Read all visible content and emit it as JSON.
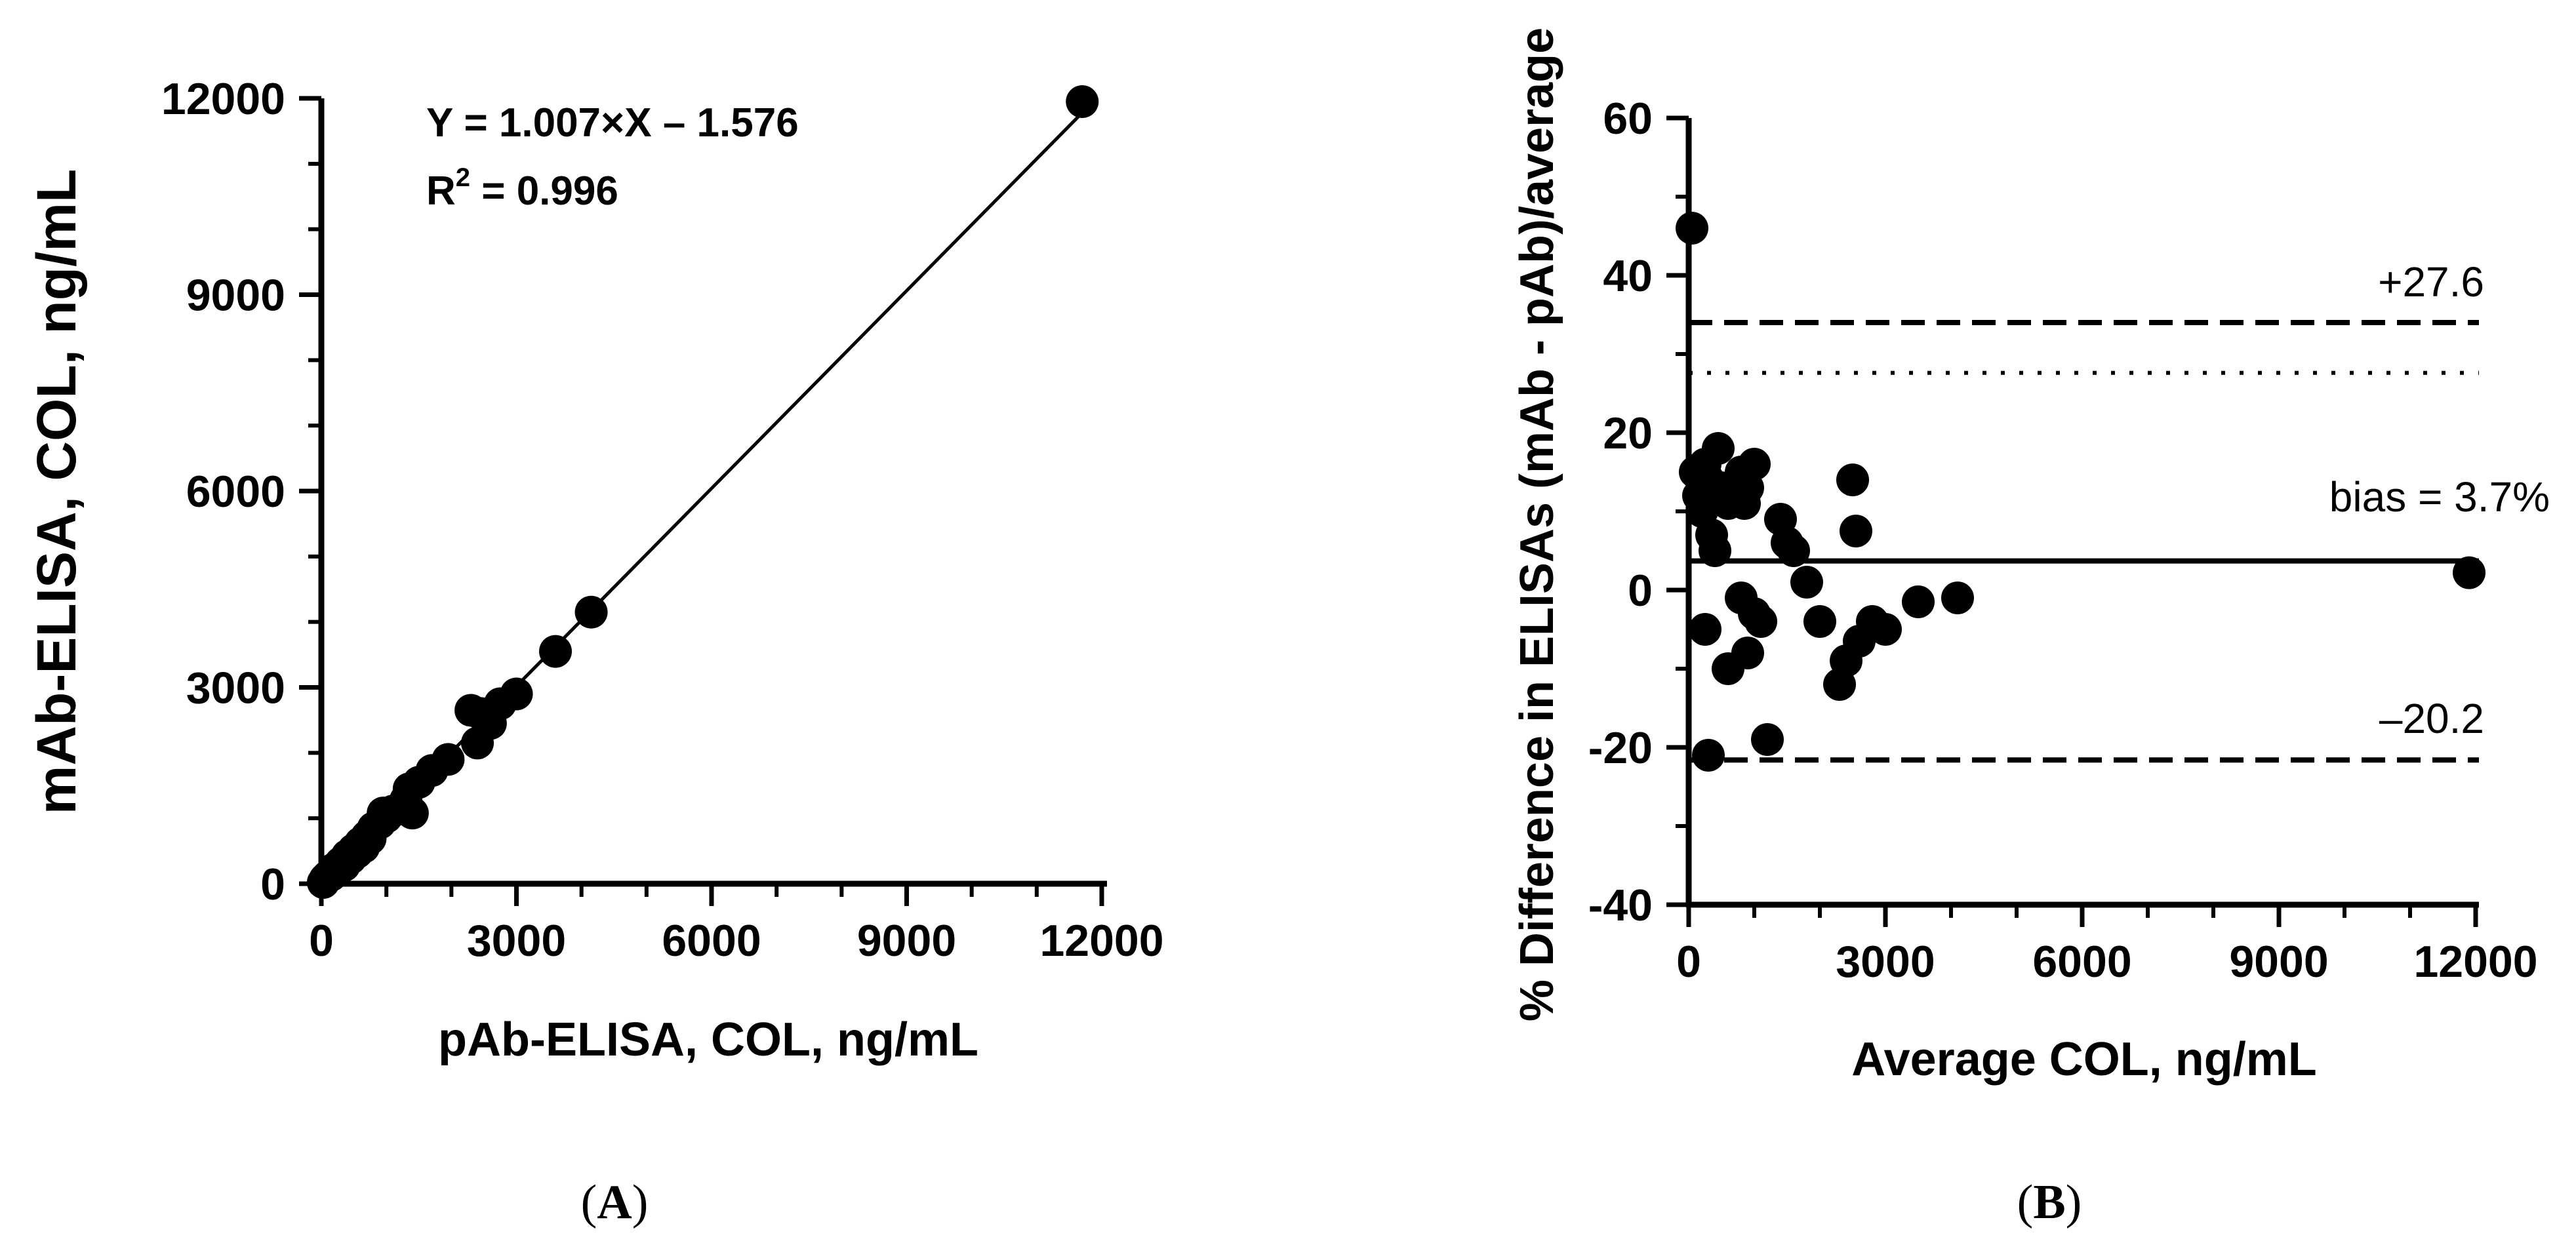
{
  "chart_data": [
    {
      "panel": "A",
      "panel_label_open": "(",
      "panel_label_letter": "A",
      "panel_label_close": ")",
      "type": "scatter",
      "xlabel": "pAb-ELISA, COL, ng/mL",
      "ylabel": "mAb-ELISA, COL, ng/mL",
      "xlim": [
        0,
        12000
      ],
      "ylim": [
        0,
        12000
      ],
      "xticks": [
        "0",
        "3000",
        "6000",
        "9000",
        "12000"
      ],
      "yticks": [
        "0",
        "3000",
        "6000",
        "9000",
        "12000"
      ],
      "annotation_equation": "Y = 1.007×X – 1.576",
      "annotation_r2_prefix": "R",
      "annotation_r2_sup": "2",
      "annotation_r2_value": " = 0.996",
      "regression": {
        "slope": 1.007,
        "intercept": -1.576,
        "x_range": [
          0,
          11700
        ]
      },
      "points": [
        [
          30,
          20
        ],
        [
          60,
          70
        ],
        [
          100,
          110
        ],
        [
          150,
          130
        ],
        [
          200,
          230
        ],
        [
          250,
          200
        ],
        [
          300,
          320
        ],
        [
          350,
          280
        ],
        [
          400,
          430
        ],
        [
          450,
          390
        ],
        [
          500,
          520
        ],
        [
          550,
          480
        ],
        [
          600,
          620
        ],
        [
          650,
          560
        ],
        [
          700,
          720
        ],
        [
          750,
          690
        ],
        [
          800,
          850
        ],
        [
          900,
          930
        ],
        [
          950,
          1080
        ],
        [
          1000,
          1020
        ],
        [
          1100,
          1110
        ],
        [
          1300,
          1280
        ],
        [
          1350,
          1450
        ],
        [
          1400,
          1080
        ],
        [
          1500,
          1550
        ],
        [
          1700,
          1730
        ],
        [
          1950,
          1900
        ],
        [
          2300,
          2650
        ],
        [
          2450,
          2600
        ],
        [
          2400,
          2150
        ],
        [
          2600,
          2450
        ],
        [
          2750,
          2750
        ],
        [
          3000,
          2900
        ],
        [
          3600,
          3550
        ],
        [
          4150,
          4150
        ],
        [
          11700,
          11950
        ]
      ]
    },
    {
      "panel": "B",
      "panel_label_open": "(",
      "panel_label_letter": "B",
      "panel_label_close": ")",
      "type": "scatter",
      "xlabel": "Average COL, ng/mL",
      "ylabel": "% Difference in ELISAs (mAb - pAb)/average",
      "xlim": [
        0,
        12000
      ],
      "ylim": [
        -40,
        60
      ],
      "xticks": [
        "0",
        "3000",
        "6000",
        "9000",
        "12000"
      ],
      "yticks": [
        "-40",
        "-20",
        "0",
        "20",
        "40",
        "60"
      ],
      "reference_lines": [
        {
          "y": 34,
          "style": "dashed"
        },
        {
          "y": 27.6,
          "style": "dotted"
        },
        {
          "y": 3.7,
          "style": "solid"
        },
        {
          "y": -21.6,
          "style": "dashed"
        }
      ],
      "label_upper": "+27.6",
      "label_bias": "bias = 3.7%",
      "label_lower": "–20.2",
      "points": [
        [
          50,
          46
        ],
        [
          100,
          15
        ],
        [
          150,
          12
        ],
        [
          200,
          10
        ],
        [
          250,
          16
        ],
        [
          300,
          14
        ],
        [
          350,
          7
        ],
        [
          400,
          5
        ],
        [
          450,
          18
        ],
        [
          500,
          13
        ],
        [
          600,
          11
        ],
        [
          700,
          13
        ],
        [
          800,
          15
        ],
        [
          850,
          11
        ],
        [
          900,
          13
        ],
        [
          1000,
          16
        ],
        [
          250,
          -5
        ],
        [
          300,
          -21
        ],
        [
          600,
          -10
        ],
        [
          800,
          -1
        ],
        [
          900,
          -8
        ],
        [
          1000,
          -3
        ],
        [
          1100,
          -4
        ],
        [
          1200,
          -19
        ],
        [
          1400,
          9
        ],
        [
          1500,
          6
        ],
        [
          1600,
          5
        ],
        [
          1800,
          1
        ],
        [
          2000,
          -4
        ],
        [
          2300,
          -12
        ],
        [
          2400,
          -9
        ],
        [
          2500,
          14
        ],
        [
          2550,
          7.5
        ],
        [
          2600,
          -6.5
        ],
        [
          2800,
          -4
        ],
        [
          3000,
          -5
        ],
        [
          3500,
          -1.5
        ],
        [
          4100,
          -1
        ],
        [
          11900,
          2.2
        ]
      ]
    }
  ]
}
